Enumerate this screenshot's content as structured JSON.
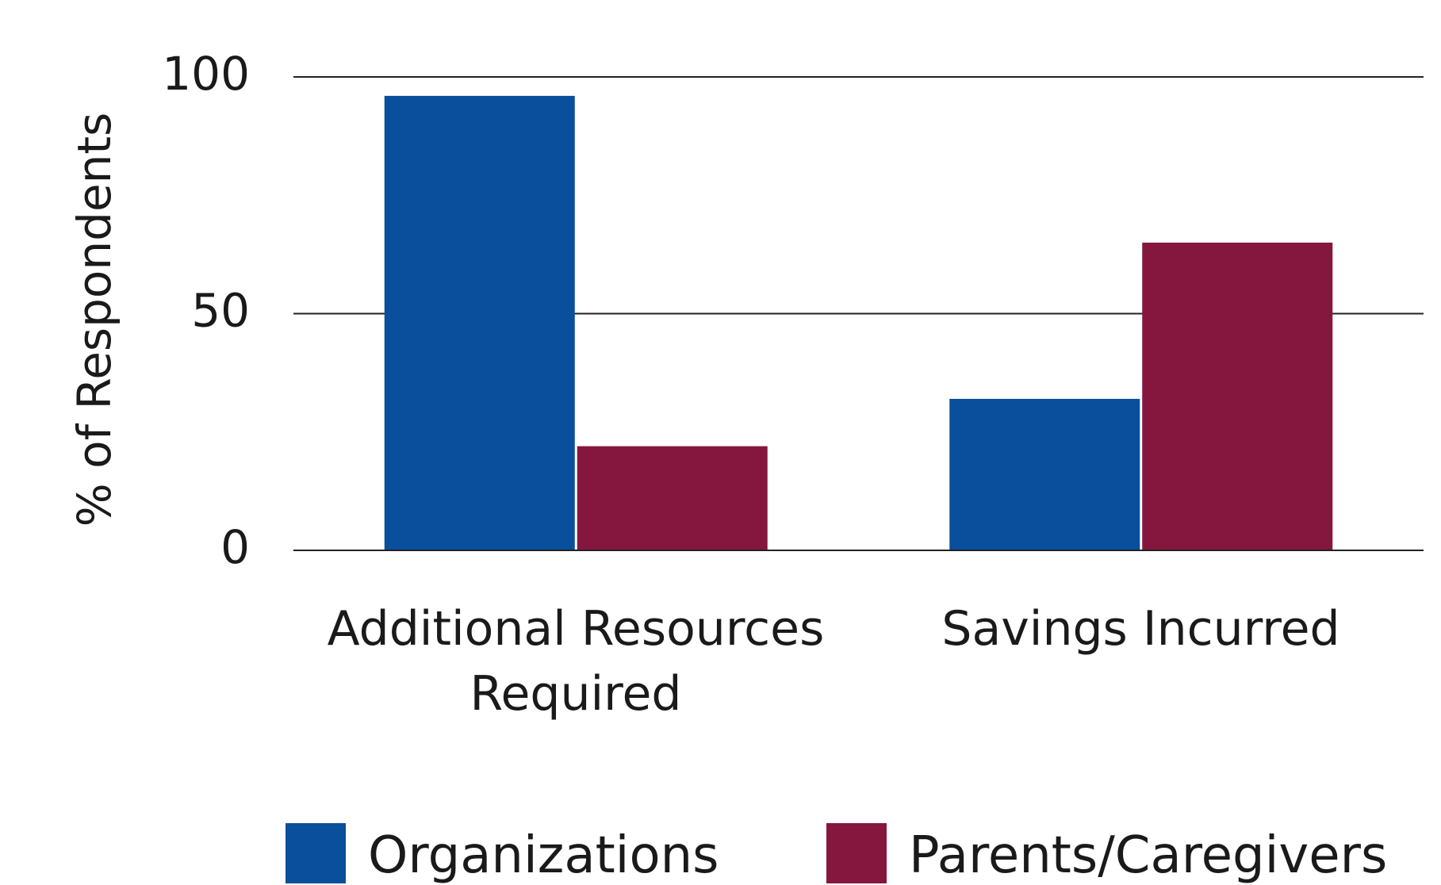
{
  "chart_data": {
    "type": "bar",
    "y_label": "% of Respondents",
    "categories": [
      "Additional Resources Required",
      "Savings Incurred"
    ],
    "series": [
      {
        "name": "Organizations",
        "color": "#0a4f9b",
        "values": [
          96,
          32
        ]
      },
      {
        "name": "Parents/Caregivers",
        "color": "#85173f",
        "values": [
          22,
          65
        ]
      }
    ],
    "ylim": [
      0,
      100
    ],
    "yticks": [
      0,
      50,
      100
    ],
    "grid": true
  }
}
